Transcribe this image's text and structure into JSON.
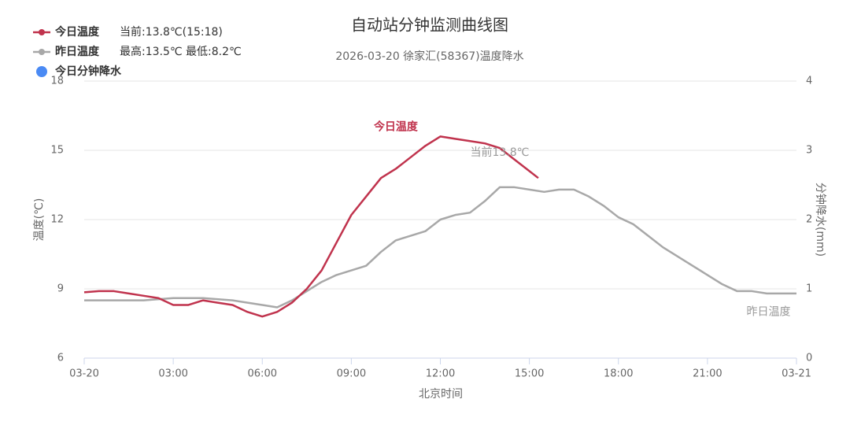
{
  "chart_data": {
    "type": "line",
    "title": "自动站分钟监测曲线图",
    "subtitle": "2026-03-20 徐家汇(58367)温度降水",
    "x_label": "北京时间",
    "y_label": "温度(℃)",
    "y2_label": "分钟降水(mm)",
    "xlim": [
      0,
      24
    ],
    "xticks": [
      {
        "value": 0,
        "label": "03-20"
      },
      {
        "value": 3,
        "label": "03:00"
      },
      {
        "value": 6,
        "label": "06:00"
      },
      {
        "value": 9,
        "label": "09:00"
      },
      {
        "value": 12,
        "label": "12:00"
      },
      {
        "value": 15,
        "label": "15:00"
      },
      {
        "value": 18,
        "label": "18:00"
      },
      {
        "value": 21,
        "label": "21:00"
      },
      {
        "value": 24,
        "label": "03-21"
      }
    ],
    "ylim": [
      6,
      18
    ],
    "yticks": [
      6,
      9,
      12,
      15,
      18
    ],
    "y2lim": [
      0,
      4
    ],
    "y2ticks": [
      0,
      1,
      2,
      3,
      4
    ],
    "grid": true,
    "legend_position": "top-left",
    "series": [
      {
        "name": "今日温度",
        "note": "当前:13.8℃(15:18)",
        "color": "#c0334d",
        "x": [
          0,
          0.5,
          1,
          1.5,
          2,
          2.5,
          3,
          3.5,
          4,
          4.5,
          5,
          5.5,
          6,
          6.5,
          7,
          7.5,
          8,
          8.5,
          9,
          9.5,
          10,
          10.5,
          11,
          11.5,
          12,
          12.5,
          13,
          13.5,
          14,
          14.5,
          15,
          15.3
        ],
        "values": [
          8.85,
          8.9,
          8.9,
          8.8,
          8.7,
          8.6,
          8.3,
          8.3,
          8.5,
          8.4,
          8.3,
          8.0,
          7.8,
          8.0,
          8.4,
          9.0,
          9.8,
          11.0,
          12.2,
          13.0,
          13.8,
          14.2,
          14.7,
          15.2,
          15.6,
          15.5,
          15.4,
          15.3,
          15.1,
          14.6,
          14.1,
          13.8
        ]
      },
      {
        "name": "昨日温度",
        "note": "最高:13.5℃ 最低:8.2℃",
        "color": "#a8a8a8",
        "x": [
          0,
          1,
          2,
          3,
          4,
          5,
          6,
          6.5,
          7,
          7.5,
          8,
          8.5,
          9,
          9.5,
          10,
          10.5,
          11,
          11.5,
          12,
          12.5,
          13,
          13.5,
          14,
          14.5,
          15,
          15.5,
          16,
          16.5,
          17,
          17.5,
          18,
          18.5,
          19,
          19.5,
          20,
          20.5,
          21,
          21.5,
          22,
          22.5,
          23,
          23.5,
          24
        ],
        "values": [
          8.5,
          8.5,
          8.5,
          8.6,
          8.6,
          8.5,
          8.3,
          8.2,
          8.5,
          8.9,
          9.3,
          9.6,
          9.8,
          10.0,
          10.6,
          11.1,
          11.3,
          11.5,
          12.0,
          12.2,
          12.3,
          12.8,
          13.4,
          13.4,
          13.3,
          13.2,
          13.3,
          13.3,
          13.0,
          12.6,
          12.1,
          11.8,
          11.3,
          10.8,
          10.4,
          10.0,
          9.6,
          9.2,
          8.9,
          8.9,
          8.8,
          8.8,
          8.8
        ]
      },
      {
        "name": "今日分钟降水",
        "color": "#4a8af4",
        "axis": "y2",
        "x": [],
        "values": []
      }
    ],
    "annotations": [
      {
        "text": "今日温度",
        "x": 10.5,
        "y": 16.0
      },
      {
        "text": "当前13.8℃",
        "x": 14,
        "y": 14.9
      },
      {
        "text": "昨日温度",
        "x": 23.8,
        "y": 8.0
      }
    ]
  }
}
